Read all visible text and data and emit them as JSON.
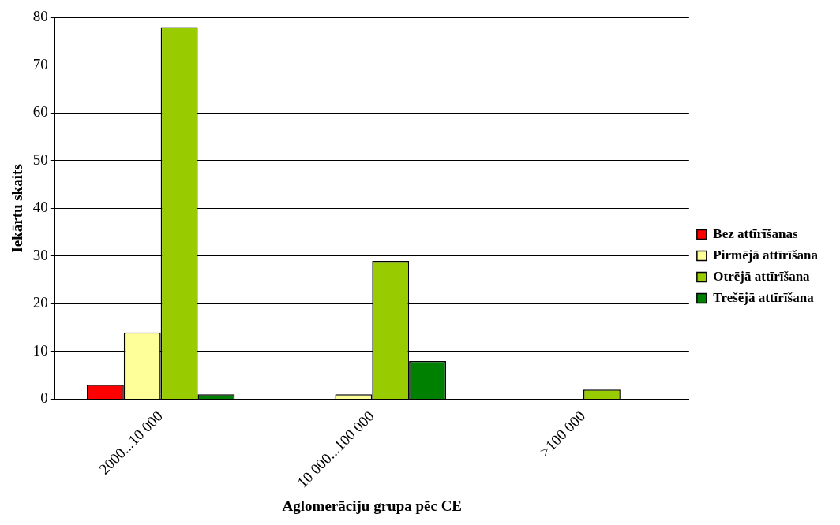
{
  "chart_data": {
    "type": "bar",
    "xlabel": "Aglomerāciju grupa pēc CE",
    "ylabel": "Iekārtu skaits",
    "categories": [
      "2000...10 000",
      "10 000...100 000",
      ">100 000"
    ],
    "series": [
      {
        "name": "Bez attīrīšanas",
        "color": "#ff0000",
        "values": [
          3,
          0,
          0
        ]
      },
      {
        "name": "Pirmējā attīrīšana",
        "color": "#ffff99",
        "values": [
          14,
          1,
          0
        ]
      },
      {
        "name": "Otrējā attīrīšana",
        "color": "#99cc00",
        "values": [
          78,
          29,
          2
        ]
      },
      {
        "name": "Trešējā attīrīšana",
        "color": "#008000",
        "values": [
          1,
          8,
          0
        ]
      }
    ],
    "ylim": [
      0,
      80
    ],
    "yticks": [
      0,
      10,
      20,
      30,
      40,
      50,
      60,
      70,
      80
    ],
    "grid": "y",
    "legend": "right"
  }
}
